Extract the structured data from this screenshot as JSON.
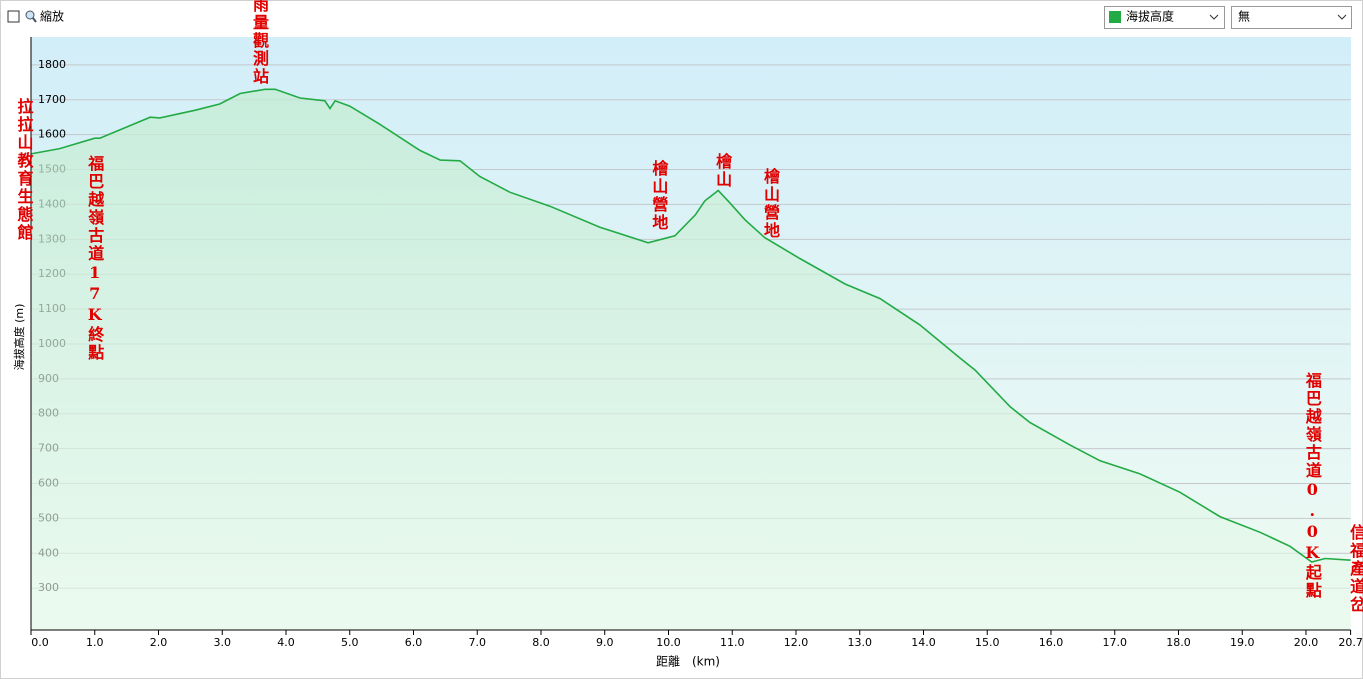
{
  "ui": {
    "zoom_label": "縮放",
    "series_select": "海拔高度",
    "second_select": "無"
  },
  "chart_data": {
    "type": "line",
    "xlabel": "距離　(km)",
    "ylabel": "海拔高度 (m)",
    "xlim": [
      0,
      20.7
    ],
    "ylim": [
      180,
      1880
    ],
    "xticks": [
      {
        "value": 0,
        "label": "0.0"
      },
      {
        "value": 1,
        "label": "1.0"
      },
      {
        "value": 2,
        "label": "2.0"
      },
      {
        "value": 3,
        "label": "3.0"
      },
      {
        "value": 4,
        "label": "4.0"
      },
      {
        "value": 5,
        "label": "5.0"
      },
      {
        "value": 6,
        "label": "6.0"
      },
      {
        "value": 7,
        "label": "7.0"
      },
      {
        "value": 8,
        "label": "8.0"
      },
      {
        "value": 9,
        "label": "9.0"
      },
      {
        "value": 10,
        "label": "10.0"
      },
      {
        "value": 11,
        "label": "11.0"
      },
      {
        "value": 12,
        "label": "12.0"
      },
      {
        "value": 13,
        "label": "13.0"
      },
      {
        "value": 14,
        "label": "14.0"
      },
      {
        "value": 15,
        "label": "15.0"
      },
      {
        "value": 16,
        "label": "16.0"
      },
      {
        "value": 17,
        "label": "17.0"
      },
      {
        "value": 18,
        "label": "18.0"
      },
      {
        "value": 19,
        "label": "19.0"
      },
      {
        "value": 20,
        "label": "20.0"
      },
      20.7
    ],
    "yticks": [
      300,
      400,
      500,
      600,
      700,
      800,
      900,
      1000,
      1100,
      1200,
      1300,
      1400,
      1500,
      1600,
      1700,
      1800
    ],
    "grid": true,
    "series": [
      {
        "name": "海拔高度",
        "color": "#22aa44",
        "x": [
          0,
          0.45,
          1.0,
          1.08,
          1.87,
          2.02,
          2.57,
          2.96,
          3.28,
          3.67,
          3.83,
          4.22,
          4.61,
          4.69,
          4.77,
          5.0,
          5.47,
          6.1,
          6.42,
          6.73,
          7.04,
          7.51,
          8.14,
          8.92,
          9.68,
          10.1,
          10.42,
          10.57,
          10.78,
          10.96,
          11.2,
          11.51,
          12.06,
          12.77,
          13.32,
          13.94,
          14.57,
          14.81,
          15.36,
          15.67,
          16.3,
          16.77,
          17.39,
          18.02,
          18.65,
          19.28,
          19.75,
          20.09,
          20.3,
          20.7
        ],
        "values": [
          1545,
          1560,
          1590,
          1590,
          1650,
          1648,
          1670,
          1688,
          1718,
          1730,
          1730,
          1705,
          1697,
          1675,
          1697,
          1682,
          1630,
          1555,
          1527,
          1525,
          1480,
          1435,
          1395,
          1335,
          1290,
          1310,
          1370,
          1410,
          1440,
          1405,
          1356,
          1305,
          1245,
          1172,
          1130,
          1055,
          960,
          925,
          820,
          775,
          710,
          665,
          628,
          575,
          505,
          460,
          420,
          375,
          385,
          380
        ]
      }
    ],
    "annotations": [
      {
        "text": "拉拉山教育生態館",
        "x": 0
      },
      {
        "text": "福巴越嶺古道17K終點",
        "x": 1.0
      },
      {
        "text": "雨量觀測站",
        "x": 3.6
      },
      {
        "text": "檜山營地",
        "x": 9.85
      },
      {
        "text": "檜山",
        "x": 10.85
      },
      {
        "text": "檜山營地",
        "x": 11.6
      },
      {
        "text": "福巴越嶺古道0.0K起點",
        "x": 20.1
      },
      {
        "text": "信福產道岔",
        "x": 20.7
      }
    ]
  }
}
